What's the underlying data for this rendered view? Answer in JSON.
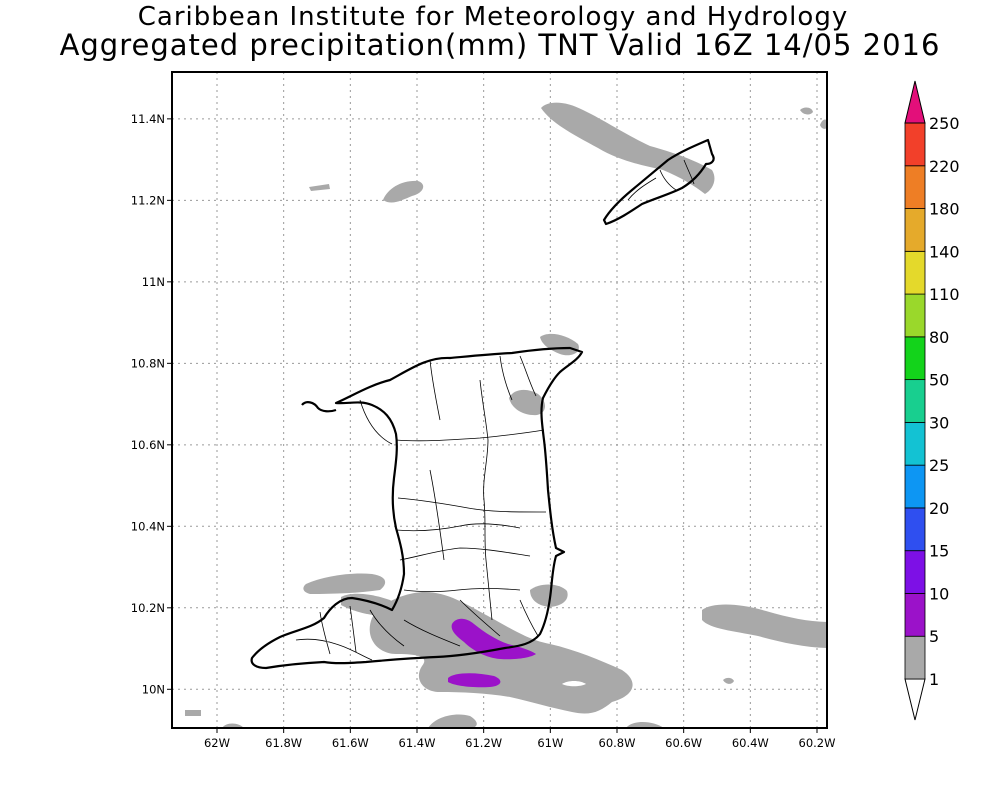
{
  "header": {
    "title": "Caribbean Institute for Meteorology and Hydrology",
    "subtitle": "Aggregated precipitation(mm) TNT Valid 16Z 14/05 2016"
  },
  "map": {
    "lon_ticks": [
      "62W",
      "61.8W",
      "61.6W",
      "61.4W",
      "61.2W",
      "61W",
      "60.8W",
      "60.6W",
      "60.4W",
      "60.2W"
    ],
    "lat_ticks": [
      "10N",
      "10.2N",
      "10.4N",
      "10.6N",
      "10.8N",
      "11N",
      "11.2N",
      "11.4N"
    ],
    "lon_range": [
      -62.135,
      -60.17
    ],
    "lat_range": [
      9.905,
      11.515
    ],
    "gridlines": true,
    "land_outline_color": "#000000",
    "rain_regions": [
      "Tobago",
      "north-east Trinidad",
      "southern Trinidad",
      "Gulf of Paria",
      "south-east offshore"
    ]
  },
  "colorbar": {
    "labels": [
      "1",
      "5",
      "10",
      "15",
      "20",
      "25",
      "30",
      "50",
      "80",
      "110",
      "140",
      "180",
      "220",
      "250"
    ],
    "bands": [
      {
        "range": "1-5",
        "color": "#a9a9a9"
      },
      {
        "range": "5-10",
        "color": "#9b12c9"
      },
      {
        "range": "10-15",
        "color": "#7d10e6"
      },
      {
        "range": "15-20",
        "color": "#2f4ff0"
      },
      {
        "range": "20-25",
        "color": "#0d96f3"
      },
      {
        "range": "25-30",
        "color": "#13c2d3"
      },
      {
        "range": "30-50",
        "color": "#18cf8f"
      },
      {
        "range": "50-80",
        "color": "#13d31b"
      },
      {
        "range": "80-110",
        "color": "#9ad82b"
      },
      {
        "range": "110-140",
        "color": "#e4d92b"
      },
      {
        "range": "140-180",
        "color": "#e5aa2b"
      },
      {
        "range": "180-220",
        "color": "#ee7e25"
      },
      {
        "range": "220-250",
        "color": "#f2402a"
      }
    ],
    "over_color": "#e30f7a",
    "under_color": "#ffffff"
  }
}
